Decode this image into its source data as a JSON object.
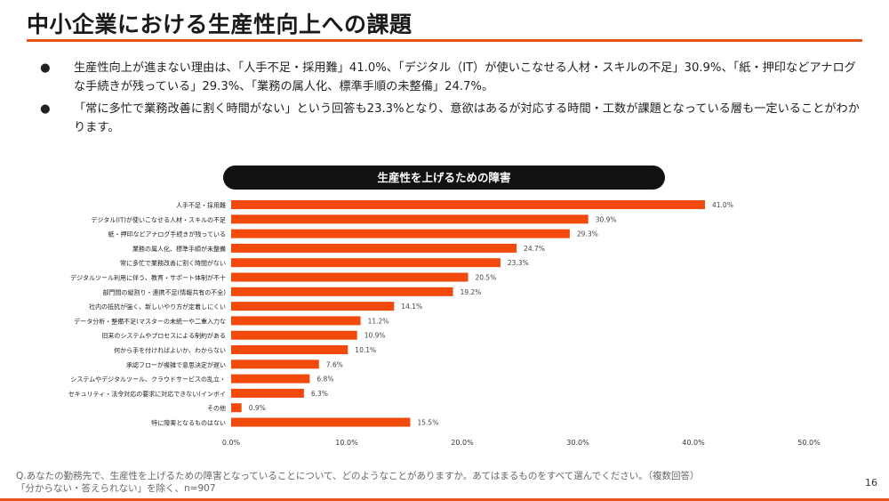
{
  "slide": {
    "title": "中小企業における生産性向上への課題",
    "bullets": [
      "生産性向上が進まない理由は、「人手不足・採用難」41.0%、「デジタル（IT）が使いこなせる人材・スキルの不足」30.9%、「紙・押印などアナログな手続きが残っている」29.3%、「業務の属人化、標準手順の未整備」24.7%。",
      "「常に多忙で業務改善に割く時間がない」という回答も23.3%となり、意欲はあるが対応する時間・工数が課題となっている層も一定いることがわかります。"
    ],
    "bullet_marker": "●",
    "footnote_line1": "Q.あなたの勤務先で、生産性を上げるための障害となっていることについて、どのようなことがありますか。あてはまるものをすべて選んでください。（複数回答）",
    "footnote_line2": "「分からない・答えられない」を除く、n=907",
    "page_number": "16"
  },
  "colors": {
    "accent": "#e8531d",
    "bar": "#f24a0c",
    "pill_bg": "#111111"
  },
  "chart_data": {
    "type": "bar",
    "orientation": "horizontal",
    "title": "生産性を上げるための障害",
    "categories": [
      "人手不足・採用難",
      "デジタル(IT)が使いこなせる人材・スキルの不足",
      "紙・押印などアナログ手続きが残っている",
      "業務の属人化、標準手順が未整備",
      "常に多忙で業務改善に割く時間がない",
      "デジタルツール利用に伴う、教育・サポート体制が不十",
      "部門間の縦割り・連携不足(情報共有の不全)",
      "社内の抵抗が強く、新しいやり方が定着しにくい",
      "データ分析・整備不足(マスターの未統一や二重入力な",
      "旧来のシステムやプロセスによる制約がある",
      "何から手を付ければよいか、わからない",
      "承認フローが複雑で意思決定が遅い",
      "システムやデジタルツール、クラウドサービスの乱立・",
      "セキュリティ・法令対応の要求に対応できない(インボイ",
      "その他",
      "特に障害となるものはない"
    ],
    "values": [
      41.0,
      30.9,
      29.3,
      24.7,
      23.3,
      20.5,
      19.2,
      14.1,
      11.2,
      10.9,
      10.1,
      7.6,
      6.8,
      6.3,
      0.9,
      15.5
    ],
    "value_labels": [
      "41.0%",
      "30.9%",
      "29.3%",
      "24.7%",
      "23.3%",
      "20.5%",
      "19.2%",
      "14.1%",
      "11.2%",
      "10.9%",
      "10.1%",
      "7.6%",
      "6.8%",
      "6.3%",
      "0.9%",
      "15.5%"
    ],
    "xticks": [
      0,
      10,
      20,
      30,
      40,
      50
    ],
    "xtick_labels": [
      "0.0%",
      "10.0%",
      "20.0%",
      "30.0%",
      "40.0%",
      "50.0%"
    ],
    "xlim": [
      0,
      50
    ],
    "grid": false,
    "legend": "none"
  }
}
